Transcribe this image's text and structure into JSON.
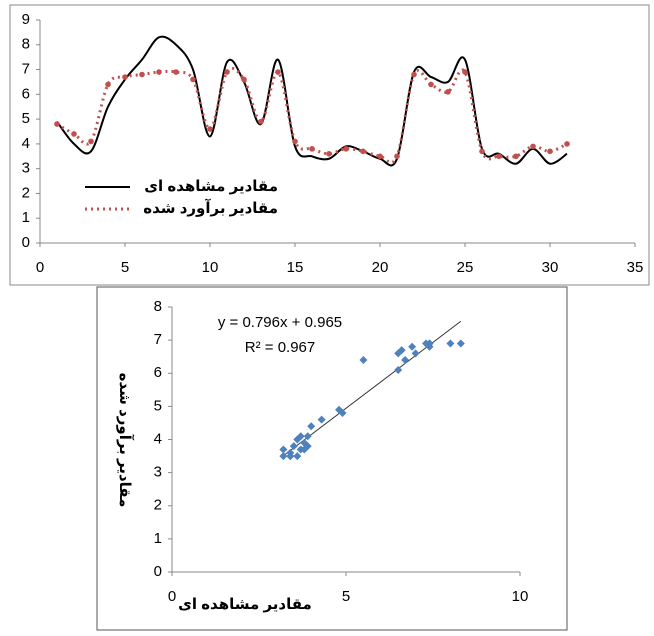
{
  "chart_data": [
    {
      "type": "line",
      "x": [
        1,
        2,
        3,
        4,
        5,
        6,
        7,
        8,
        9,
        10,
        11,
        12,
        13,
        14,
        15,
        16,
        17,
        18,
        19,
        20,
        21,
        22,
        23,
        24,
        25,
        26,
        27,
        28,
        29,
        30,
        31
      ],
      "series": [
        {
          "name": "مقادیر مشاهده ای",
          "color": "#000000",
          "values": [
            4.9,
            4.0,
            3.7,
            5.5,
            6.6,
            7.4,
            8.3,
            8.0,
            7.0,
            4.3,
            7.3,
            6.5,
            4.8,
            7.4,
            3.9,
            3.5,
            3.4,
            3.9,
            3.7,
            3.4,
            3.4,
            6.9,
            6.7,
            6.5,
            7.4,
            3.8,
            3.6,
            3.2,
            3.8,
            3.2,
            3.6
          ]
        },
        {
          "name": "مقادیر برآورد شده",
          "color": "#c0504d",
          "values": [
            4.8,
            4.4,
            4.1,
            6.4,
            6.7,
            6.8,
            6.9,
            6.9,
            6.6,
            4.6,
            6.9,
            6.6,
            4.9,
            6.9,
            4.1,
            3.8,
            3.6,
            3.8,
            3.7,
            3.5,
            3.5,
            6.8,
            6.4,
            6.1,
            6.9,
            3.7,
            3.5,
            3.5,
            3.9,
            3.7,
            4.0
          ]
        }
      ],
      "xlim": [
        0,
        35
      ],
      "xticks": [
        0,
        5,
        10,
        15,
        20,
        25,
        30,
        35
      ],
      "ylim": [
        0,
        9
      ],
      "yticks": [
        0,
        1,
        2,
        3,
        4,
        5,
        6,
        7,
        8,
        9
      ]
    },
    {
      "type": "scatter",
      "xlabel": "مقادیر مشاهده ای",
      "ylabel": "مقادیر برآورد شده",
      "annotations": [
        "y = 0.796x + 0.965",
        "R² = 0.967"
      ],
      "color": "#4f81bd",
      "x": [
        4.9,
        4.0,
        3.7,
        5.5,
        6.6,
        7.4,
        8.3,
        8.0,
        7.0,
        4.3,
        7.3,
        6.5,
        4.8,
        7.4,
        3.9,
        3.5,
        3.4,
        3.9,
        3.7,
        3.4,
        3.4,
        6.9,
        6.7,
        6.5,
        7.4,
        3.8,
        3.6,
        3.2,
        3.8,
        3.2,
        3.6
      ],
      "y": [
        4.8,
        4.4,
        4.1,
        6.4,
        6.7,
        6.8,
        6.9,
        6.9,
        6.6,
        4.6,
        6.9,
        6.6,
        4.9,
        6.9,
        4.1,
        3.8,
        3.6,
        3.8,
        3.7,
        3.5,
        3.5,
        6.8,
        6.4,
        6.1,
        6.9,
        3.7,
        3.5,
        3.5,
        3.9,
        3.7,
        4.0
      ],
      "trendline": {
        "x": [
          3.2,
          8.3
        ],
        "y": [
          3.51,
          7.57
        ]
      },
      "xlim": [
        0,
        10
      ],
      "xticks": [
        0,
        5,
        10
      ],
      "ylim": [
        0,
        8
      ],
      "yticks": [
        0,
        1,
        2,
        3,
        4,
        5,
        6,
        7,
        8
      ]
    }
  ]
}
